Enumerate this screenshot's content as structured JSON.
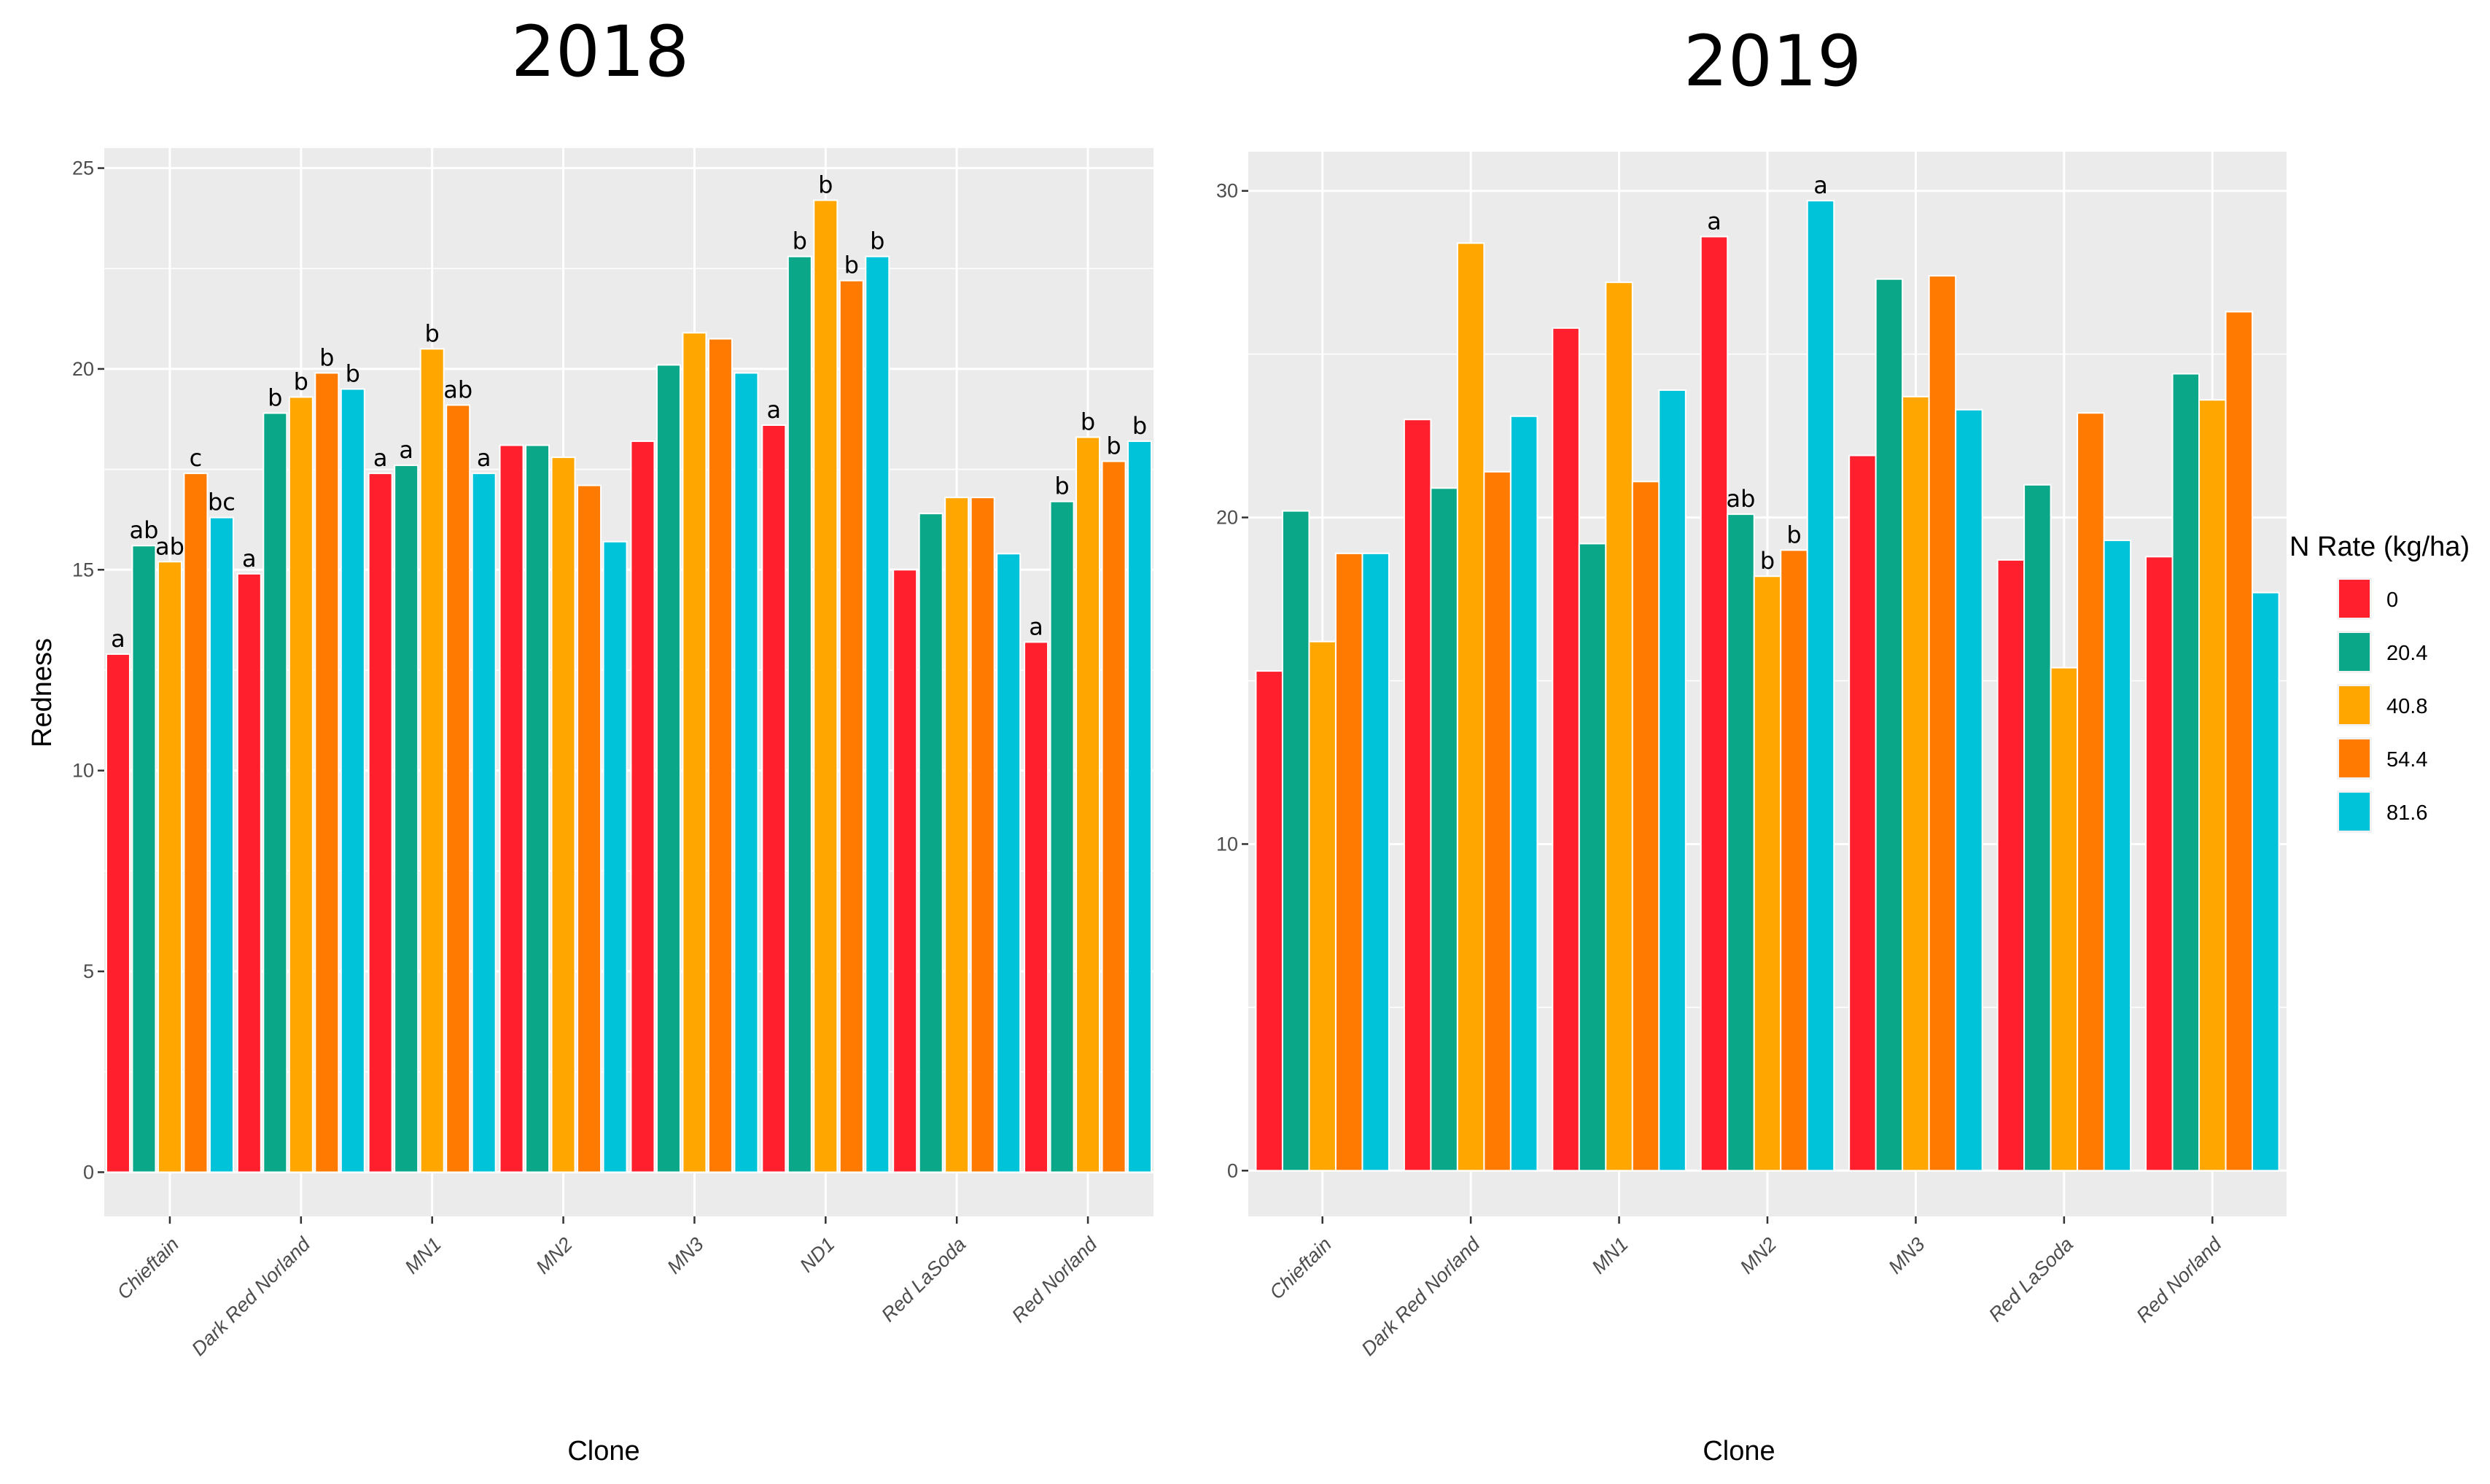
{
  "legend": {
    "title": "N Rate (kg/ha)",
    "items": [
      "0",
      "20.4",
      "40.8",
      "54.4",
      "81.6"
    ]
  },
  "colors": {
    "series": [
      "#ff1f2d",
      "#0aa888",
      "#ffa700",
      "#ff7a00",
      "#00c3d9"
    ],
    "panel_bg": "#ebebeb",
    "grid": "#ffffff"
  },
  "chart_data": [
    {
      "type": "bar",
      "title": "2018",
      "xlabel": "Clone",
      "ylabel": "Redness",
      "ylim": [
        -1.1,
        25.5
      ],
      "yticks": [
        0,
        5,
        10,
        15,
        20,
        25
      ],
      "grid": true,
      "legend": "none",
      "categories": [
        "Chieftain",
        "Dark Red Norland",
        "MN1",
        "MN2",
        "MN3",
        "ND1",
        "Red LaSoda",
        "Red Norland"
      ],
      "series": [
        {
          "name": "0",
          "values": [
            12.9,
            14.9,
            17.4,
            18.1,
            18.2,
            18.6,
            15.0,
            13.2
          ]
        },
        {
          "name": "20.4",
          "values": [
            15.6,
            18.9,
            17.6,
            18.1,
            20.1,
            22.8,
            16.4,
            16.7
          ]
        },
        {
          "name": "40.8",
          "values": [
            15.2,
            19.3,
            20.5,
            17.8,
            20.9,
            24.2,
            16.8,
            18.3
          ]
        },
        {
          "name": "54.4",
          "values": [
            17.4,
            19.9,
            19.1,
            17.1,
            20.75,
            22.2,
            16.8,
            17.7
          ]
        },
        {
          "name": "81.6",
          "values": [
            16.3,
            19.5,
            17.4,
            15.7,
            19.9,
            22.8,
            15.4,
            18.2
          ]
        }
      ],
      "labels": [
        [
          "a",
          "ab",
          "ab",
          "c",
          "bc"
        ],
        [
          "a",
          "b",
          "b",
          "b",
          "b"
        ],
        [
          "a",
          "a",
          "b",
          "ab",
          "a"
        ],
        [
          "",
          "",
          "",
          "",
          ""
        ],
        [
          "",
          "",
          "",
          "",
          ""
        ],
        [
          "a",
          "b",
          "b",
          "b",
          "b"
        ],
        [
          "",
          "",
          "",
          "",
          ""
        ],
        [
          "a",
          "b",
          "b",
          "b",
          "b"
        ]
      ]
    },
    {
      "type": "bar",
      "title": "2019",
      "xlabel": "Clone",
      "ylabel": "",
      "ylim": [
        -1.4,
        31.2
      ],
      "yticks": [
        0,
        10,
        20,
        30
      ],
      "grid": true,
      "legend": "right",
      "categories": [
        "Chieftain",
        "Dark Red Norland",
        "MN1",
        "MN2",
        "MN3",
        "Red LaSoda",
        "Red Norland"
      ],
      "series": [
        {
          "name": "0",
          "values": [
            15.3,
            23.0,
            25.8,
            28.6,
            21.9,
            18.7,
            18.8
          ]
        },
        {
          "name": "20.4",
          "values": [
            20.2,
            20.9,
            19.2,
            20.1,
            27.3,
            21.0,
            24.4
          ]
        },
        {
          "name": "40.8",
          "values": [
            16.2,
            28.4,
            27.2,
            18.2,
            23.7,
            15.4,
            23.6
          ]
        },
        {
          "name": "54.4",
          "values": [
            18.9,
            21.4,
            21.1,
            19.0,
            27.4,
            23.2,
            26.3
          ]
        },
        {
          "name": "81.6",
          "values": [
            18.9,
            23.1,
            23.9,
            29.7,
            23.3,
            19.3,
            17.7
          ]
        }
      ],
      "labels": [
        [
          "",
          "",
          "",
          "",
          ""
        ],
        [
          "",
          "",
          "",
          "",
          ""
        ],
        [
          "",
          "",
          "",
          "",
          ""
        ],
        [
          "a",
          "ab",
          "b",
          "b",
          "a"
        ],
        [
          "",
          "",
          "",
          "",
          ""
        ],
        [
          "",
          "",
          "",
          "",
          ""
        ],
        [
          "",
          "",
          "",
          "",
          ""
        ]
      ]
    }
  ]
}
